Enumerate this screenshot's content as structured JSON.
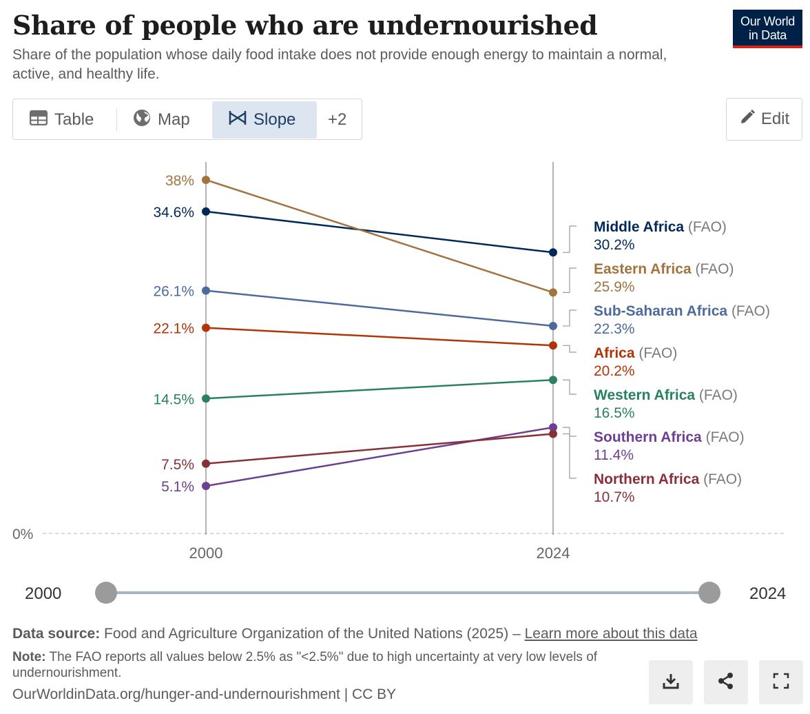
{
  "header": {
    "title": "Share of people who are undernourished",
    "subtitle": "Share of the population whose daily food intake does not provide enough energy to maintain a normal, active, and healthy life.",
    "logo_line1": "Our World",
    "logo_line2": "in Data"
  },
  "tabs": [
    {
      "label": "Table",
      "icon": "table-icon"
    },
    {
      "label": "Map",
      "icon": "globe-icon"
    },
    {
      "label": "Slope",
      "icon": "slope-icon",
      "active": true
    },
    {
      "label": "+2"
    }
  ],
  "edit_label": "Edit",
  "timeline": {
    "start": "2000",
    "end": "2024"
  },
  "footer": {
    "source_label": "Data source:",
    "source_text": " Food and Agriculture Organization of the United Nations (2025) – ",
    "source_link": "Learn more about this data",
    "note_label": "Note:",
    "note_text": " The FAO reports all values below 2.5% as \"<2.5%\" due to high uncertainty at very low levels of undernourishment.",
    "url": "OurWorldinData.org/hunger-and-undernourishment | CC BY"
  },
  "actions": [
    "download-icon",
    "share-icon",
    "fullscreen-icon"
  ],
  "chart_data": {
    "type": "line",
    "subtype": "slope",
    "x": [
      "2000",
      "2024"
    ],
    "ylim": [
      0,
      38
    ],
    "zero_label": "0%",
    "label_suffix": " (FAO)",
    "series": [
      {
        "name": "Middle Africa",
        "values": [
          34.6,
          30.2
        ],
        "start_label": "34.6%",
        "end_label": "30.2%",
        "color": "#00295b"
      },
      {
        "name": "Eastern Africa",
        "values": [
          38,
          25.9
        ],
        "start_label": "38%",
        "end_label": "25.9%",
        "color": "#a2733f"
      },
      {
        "name": "Sub-Saharan Africa",
        "values": [
          26.1,
          22.3
        ],
        "start_label": "26.1%",
        "end_label": "22.3%",
        "color": "#4c6a9c"
      },
      {
        "name": "Africa",
        "values": [
          22.1,
          20.2
        ],
        "start_label": "22.1%",
        "end_label": "20.2%",
        "color": "#b13507"
      },
      {
        "name": "Western Africa",
        "values": [
          14.5,
          16.5
        ],
        "start_label": "14.5%",
        "end_label": "16.5%",
        "color": "#2a8065"
      },
      {
        "name": "Southern Africa",
        "values": [
          5.1,
          11.4
        ],
        "start_label": "5.1%",
        "end_label": "11.4%",
        "color": "#6d3e91"
      },
      {
        "name": "Northern Africa",
        "values": [
          7.5,
          10.7
        ],
        "start_label": "7.5%",
        "end_label": "10.7%",
        "color": "#883039"
      }
    ]
  }
}
